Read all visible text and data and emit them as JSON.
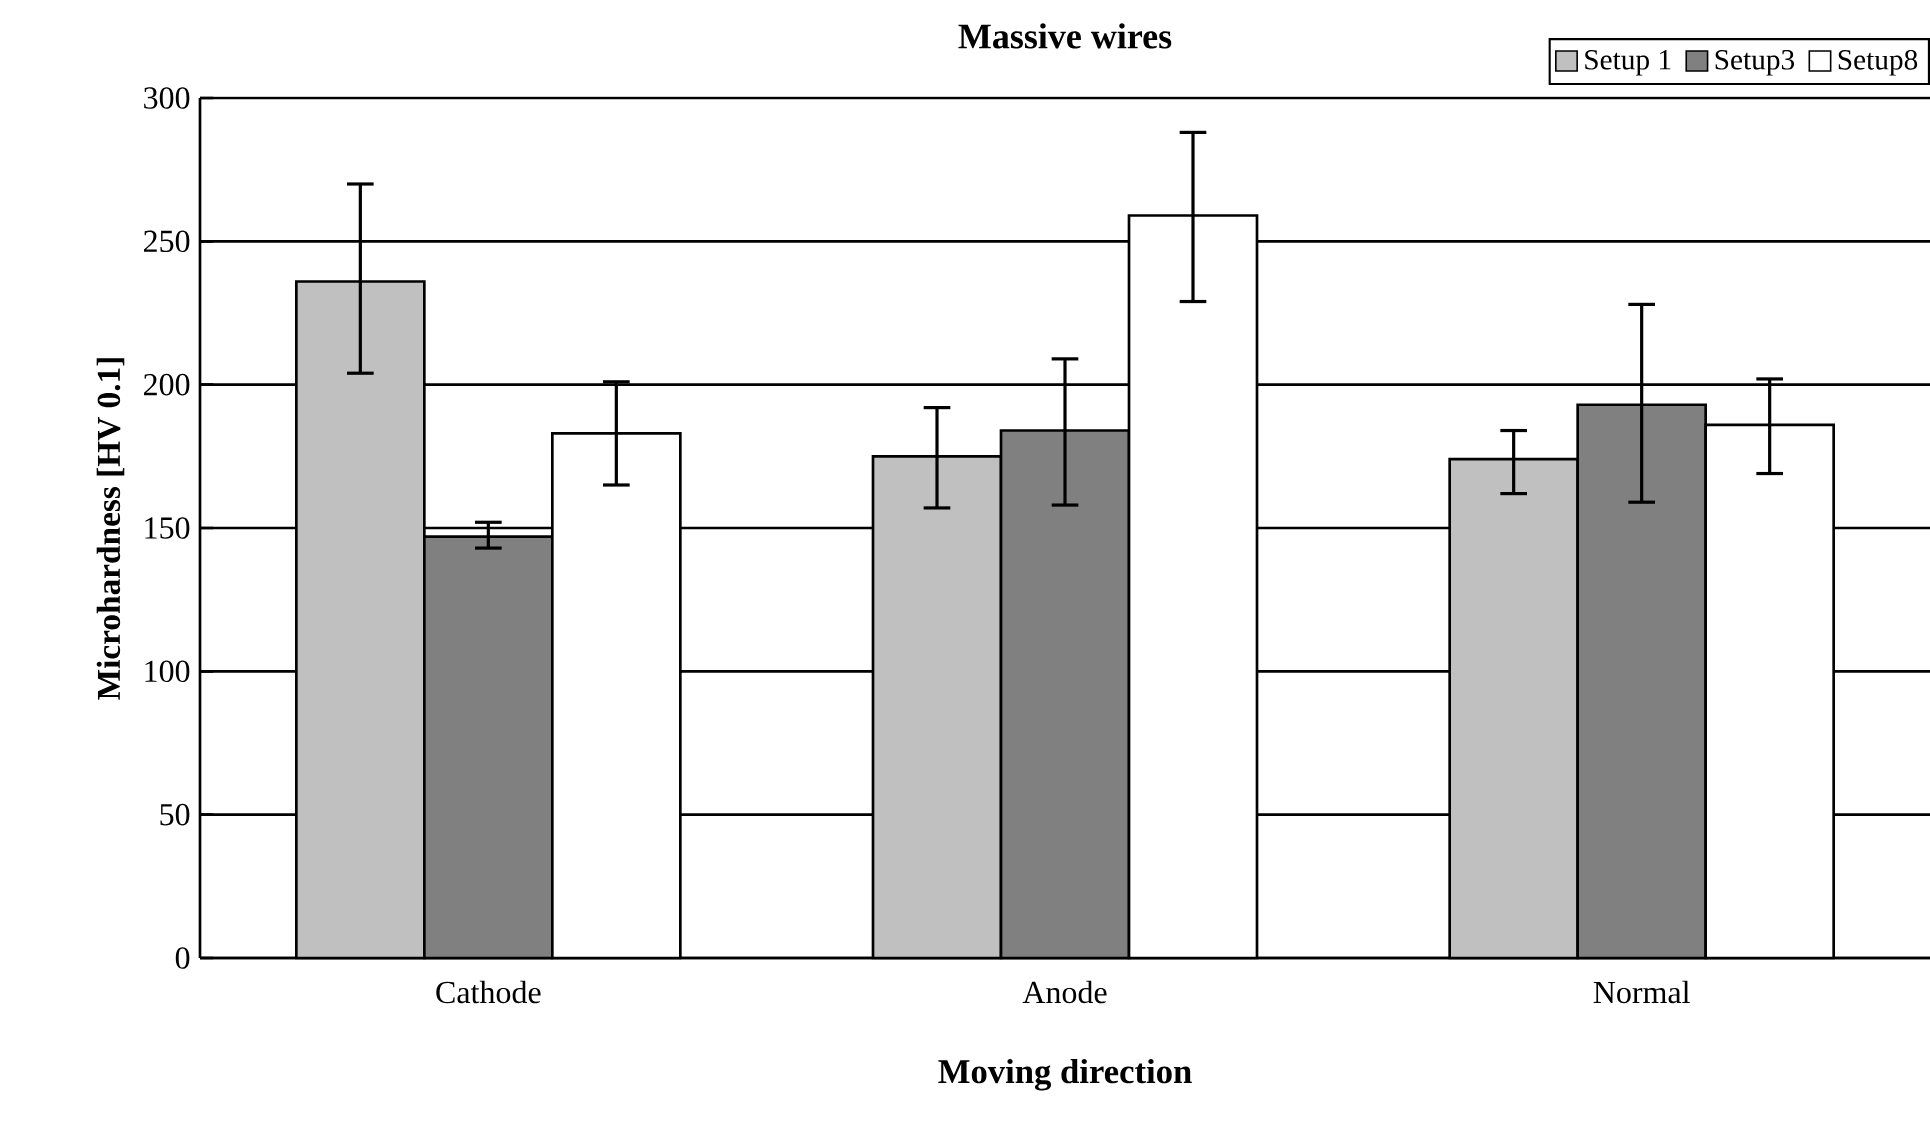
{
  "chart_data": {
    "type": "bar",
    "title": "Massive wires",
    "xlabel": "Moving direction",
    "ylabel": "Microhardness [HV 0.1]",
    "categories": [
      "Cathode",
      "Anode",
      "Normal"
    ],
    "series": [
      {
        "name": "Setup 1",
        "color": "#c0c0c0",
        "values": [
          236,
          175,
          174
        ],
        "errors": [
          [
            204,
            270
          ],
          [
            157,
            192
          ],
          [
            162,
            184
          ]
        ]
      },
      {
        "name": "Setup3",
        "color": "#808080",
        "values": [
          147,
          184,
          193
        ],
        "errors": [
          [
            143,
            152
          ],
          [
            158,
            209
          ],
          [
            159,
            228
          ]
        ]
      },
      {
        "name": "Setup8",
        "color": "#ffffff",
        "values": [
          183,
          259,
          186
        ],
        "errors": [
          [
            165,
            201
          ],
          [
            229,
            288
          ],
          [
            169,
            202
          ]
        ]
      }
    ],
    "ylim": [
      0,
      300
    ],
    "yticks": [
      0,
      50,
      100,
      150,
      200,
      250,
      300
    ],
    "grid": "y",
    "legend": "top right"
  }
}
